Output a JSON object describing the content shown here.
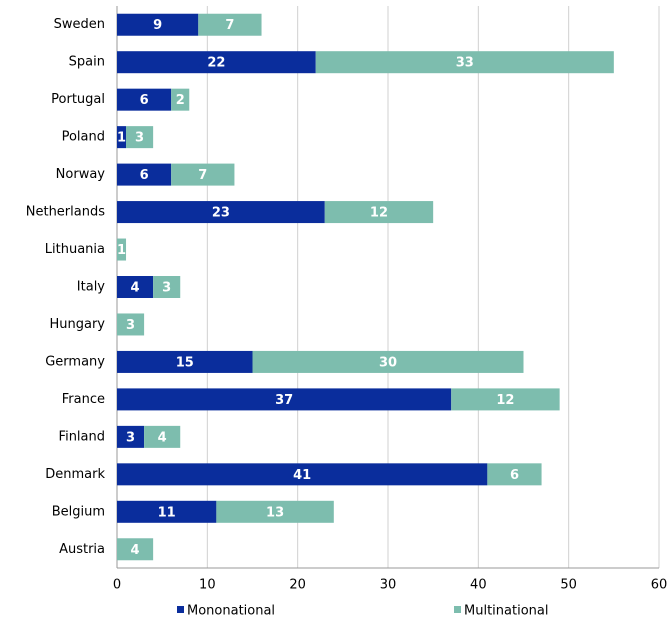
{
  "chart_data": {
    "type": "stacked_barh",
    "categories": [
      "Sweden",
      "Spain",
      "Portugal",
      "Poland",
      "Norway",
      "Netherlands",
      "Lithuania",
      "Italy",
      "Hungary",
      "Germany",
      "France",
      "Finland",
      "Denmark",
      "Belgium",
      "Austria"
    ],
    "series": [
      {
        "name": "Mononational",
        "color": "#0a2d9c",
        "values": [
          9,
          22,
          6,
          1,
          6,
          23,
          null,
          4,
          null,
          15,
          37,
          3,
          41,
          11,
          null
        ]
      },
      {
        "name": "Multinational",
        "color": "#7dbdae",
        "values": [
          7,
          33,
          2,
          3,
          7,
          12,
          1,
          3,
          3,
          30,
          12,
          4,
          6,
          13,
          4
        ]
      }
    ],
    "xlim": [
      0,
      60
    ],
    "xticks": [
      0,
      10,
      20,
      30,
      40,
      50,
      60
    ],
    "grid": true,
    "legend": "bottom"
  }
}
